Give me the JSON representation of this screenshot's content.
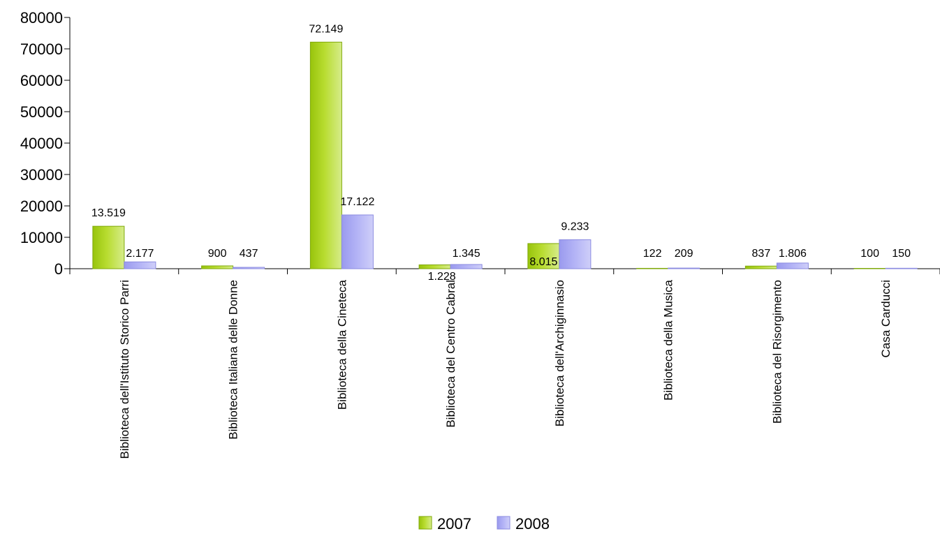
{
  "chart_data": {
    "type": "bar",
    "categories": [
      "Biblioteca dell'Istituto Storico Parri",
      "Biblioteca Italiana delle Donne",
      "Biblioteca della Cineteca",
      "Biblioteca del Centro Cabral",
      "Biblioteca dell'Archiginnasio",
      "Biblioteca della Musica",
      "Biblioteca del Risorgimento",
      "Casa Carducci"
    ],
    "series": [
      {
        "name": "2007",
        "values": [
          13519,
          900,
          72149,
          1228,
          8015,
          122,
          837,
          100
        ],
        "labels": [
          "13.519",
          "900",
          "72.149",
          "1.228",
          "8.015",
          "122",
          "837",
          "100"
        ],
        "color": "#a9d123"
      },
      {
        "name": "2008",
        "values": [
          2177,
          437,
          17122,
          1345,
          9233,
          209,
          1806,
          150
        ],
        "labels": [
          "2.177",
          "437",
          "17.122",
          "1.345",
          "9.233",
          "209",
          "1.806",
          "150"
        ],
        "color": "#a6a6f2"
      }
    ],
    "ylim": [
      0,
      80000
    ],
    "yticks": [
      0,
      10000,
      20000,
      30000,
      40000,
      50000,
      60000,
      70000,
      80000
    ],
    "grid": false,
    "legend_position": "bottom-center"
  }
}
